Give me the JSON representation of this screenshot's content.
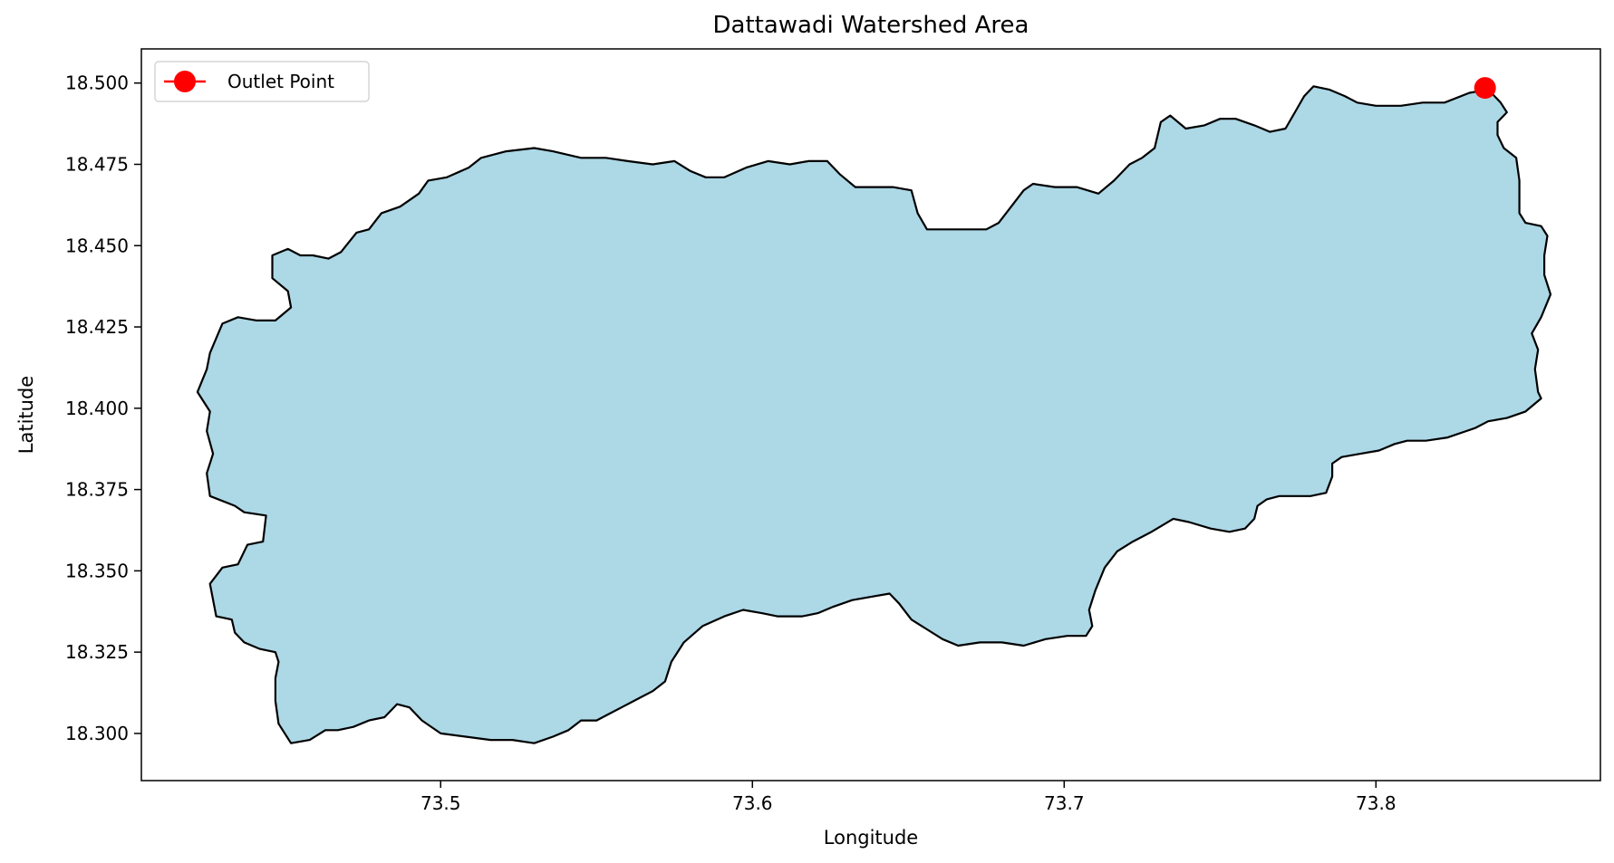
{
  "chart_data": {
    "type": "map",
    "title": "Dattawadi Watershed Area",
    "xlabel": "Longitude",
    "ylabel": "Latitude",
    "xlim": [
      73.404,
      73.872
    ],
    "ylim": [
      18.2855,
      18.5105
    ],
    "x_ticks": [
      73.5,
      73.6,
      73.7,
      73.8
    ],
    "x_tick_labels": [
      "73.5",
      "73.6",
      "73.7",
      "73.8"
    ],
    "y_ticks": [
      18.3,
      18.325,
      18.35,
      18.375,
      18.4,
      18.425,
      18.45,
      18.475,
      18.5
    ],
    "y_tick_labels": [
      "18.300",
      "18.325",
      "18.350",
      "18.375",
      "18.400",
      "18.425",
      "18.450",
      "18.475",
      "18.500"
    ],
    "grid": false,
    "legend": {
      "placement": "top-left",
      "entries": [
        {
          "label": "Outlet Point",
          "color": "#ff0000",
          "marker": "circle"
        }
      ]
    },
    "watershed": {
      "fill": "#add8e6",
      "edge": "#000000",
      "boundary": [
        [
          73.428,
          18.336
        ],
        [
          73.426,
          18.346
        ],
        [
          73.43,
          18.351
        ],
        [
          73.435,
          18.352
        ],
        [
          73.438,
          18.358
        ],
        [
          73.443,
          18.359
        ],
        [
          73.444,
          18.367
        ],
        [
          73.437,
          18.368
        ],
        [
          73.434,
          18.37
        ],
        [
          73.426,
          18.373
        ],
        [
          73.425,
          18.38
        ],
        [
          73.427,
          18.386
        ],
        [
          73.425,
          18.393
        ],
        [
          73.426,
          18.399
        ],
        [
          73.422,
          18.405
        ],
        [
          73.425,
          18.412
        ],
        [
          73.426,
          18.417
        ],
        [
          73.43,
          18.426
        ],
        [
          73.435,
          18.428
        ],
        [
          73.441,
          18.427
        ],
        [
          73.447,
          18.427
        ],
        [
          73.452,
          18.431
        ],
        [
          73.451,
          18.436
        ],
        [
          73.446,
          18.44
        ],
        [
          73.446,
          18.447
        ],
        [
          73.451,
          18.449
        ],
        [
          73.455,
          18.447
        ],
        [
          73.459,
          18.447
        ],
        [
          73.464,
          18.446
        ],
        [
          73.468,
          18.448
        ],
        [
          73.473,
          18.454
        ],
        [
          73.477,
          18.455
        ],
        [
          73.481,
          18.46
        ],
        [
          73.487,
          18.462
        ],
        [
          73.493,
          18.466
        ],
        [
          73.496,
          18.47
        ],
        [
          73.502,
          18.471
        ],
        [
          73.509,
          18.474
        ],
        [
          73.513,
          18.477
        ],
        [
          73.521,
          18.479
        ],
        [
          73.53,
          18.48
        ],
        [
          73.536,
          18.479
        ],
        [
          73.545,
          18.477
        ],
        [
          73.553,
          18.477
        ],
        [
          73.56,
          18.476
        ],
        [
          73.568,
          18.475
        ],
        [
          73.575,
          18.476
        ],
        [
          73.58,
          18.473
        ],
        [
          73.585,
          18.471
        ],
        [
          73.591,
          18.471
        ],
        [
          73.598,
          18.474
        ],
        [
          73.605,
          18.476
        ],
        [
          73.612,
          18.475
        ],
        [
          73.618,
          18.476
        ],
        [
          73.624,
          18.476
        ],
        [
          73.628,
          18.472
        ],
        [
          73.633,
          18.468
        ],
        [
          73.64,
          18.468
        ],
        [
          73.645,
          18.468
        ],
        [
          73.651,
          18.467
        ],
        [
          73.653,
          18.46
        ],
        [
          73.656,
          18.455
        ],
        [
          73.661,
          18.455
        ],
        [
          73.667,
          18.455
        ],
        [
          73.672,
          18.455
        ],
        [
          73.675,
          18.455
        ],
        [
          73.679,
          18.457
        ],
        [
          73.683,
          18.462
        ],
        [
          73.687,
          18.467
        ],
        [
          73.69,
          18.469
        ],
        [
          73.697,
          18.468
        ],
        [
          73.704,
          18.468
        ],
        [
          73.711,
          18.466
        ],
        [
          73.716,
          18.47
        ],
        [
          73.721,
          18.475
        ],
        [
          73.725,
          18.477
        ],
        [
          73.729,
          18.48
        ],
        [
          73.731,
          18.488
        ],
        [
          73.734,
          18.49
        ],
        [
          73.739,
          18.486
        ],
        [
          73.745,
          18.487
        ],
        [
          73.75,
          18.489
        ],
        [
          73.755,
          18.489
        ],
        [
          73.761,
          18.487
        ],
        [
          73.766,
          18.485
        ],
        [
          73.771,
          18.486
        ],
        [
          73.774,
          18.491
        ],
        [
          73.777,
          18.496
        ],
        [
          73.78,
          18.499
        ],
        [
          73.785,
          18.498
        ],
        [
          73.79,
          18.496
        ],
        [
          73.794,
          18.494
        ],
        [
          73.8,
          18.493
        ],
        [
          73.808,
          18.493
        ],
        [
          73.815,
          18.494
        ],
        [
          73.822,
          18.494
        ],
        [
          73.83,
          18.497
        ],
        [
          73.836,
          18.498
        ],
        [
          73.84,
          18.494
        ],
        [
          73.842,
          18.491
        ],
        [
          73.839,
          18.488
        ],
        [
          73.839,
          18.484
        ],
        [
          73.841,
          18.48
        ],
        [
          73.845,
          18.477
        ],
        [
          73.846,
          18.47
        ],
        [
          73.846,
          18.465
        ],
        [
          73.846,
          18.46
        ],
        [
          73.848,
          18.457
        ],
        [
          73.853,
          18.456
        ],
        [
          73.855,
          18.453
        ],
        [
          73.854,
          18.447
        ],
        [
          73.854,
          18.441
        ],
        [
          73.856,
          18.435
        ],
        [
          73.853,
          18.428
        ],
        [
          73.85,
          18.423
        ],
        [
          73.852,
          18.418
        ],
        [
          73.851,
          18.412
        ],
        [
          73.852,
          18.405
        ],
        [
          73.853,
          18.403
        ],
        [
          73.848,
          18.399
        ],
        [
          73.842,
          18.397
        ],
        [
          73.836,
          18.396
        ],
        [
          73.832,
          18.394
        ],
        [
          73.829,
          18.393
        ],
        [
          73.823,
          18.391
        ],
        [
          73.816,
          18.39
        ],
        [
          73.81,
          18.39
        ],
        [
          73.806,
          18.389
        ],
        [
          73.801,
          18.387
        ],
        [
          73.795,
          18.386
        ],
        [
          73.789,
          18.385
        ],
        [
          73.786,
          18.383
        ],
        [
          73.786,
          18.379
        ],
        [
          73.784,
          18.374
        ],
        [
          73.779,
          18.373
        ],
        [
          73.774,
          18.373
        ],
        [
          73.769,
          18.373
        ],
        [
          73.765,
          18.372
        ],
        [
          73.762,
          18.37
        ],
        [
          73.761,
          18.366
        ],
        [
          73.758,
          18.363
        ],
        [
          73.753,
          18.362
        ],
        [
          73.747,
          18.363
        ],
        [
          73.74,
          18.365
        ],
        [
          73.735,
          18.366
        ],
        [
          73.728,
          18.362
        ],
        [
          73.722,
          18.359
        ],
        [
          73.717,
          18.356
        ],
        [
          73.713,
          18.351
        ],
        [
          73.71,
          18.344
        ],
        [
          73.708,
          18.338
        ],
        [
          73.709,
          18.333
        ],
        [
          73.707,
          18.33
        ],
        [
          73.701,
          18.33
        ],
        [
          73.694,
          18.329
        ],
        [
          73.687,
          18.327
        ],
        [
          73.68,
          18.328
        ],
        [
          73.673,
          18.328
        ],
        [
          73.666,
          18.327
        ],
        [
          73.661,
          18.329
        ],
        [
          73.656,
          18.332
        ],
        [
          73.651,
          18.335
        ],
        [
          73.647,
          18.34
        ],
        [
          73.644,
          18.343
        ],
        [
          73.638,
          18.342
        ],
        [
          73.632,
          18.341
        ],
        [
          73.626,
          18.339
        ],
        [
          73.621,
          18.337
        ],
        [
          73.616,
          18.336
        ],
        [
          73.608,
          18.336
        ],
        [
          73.603,
          18.337
        ],
        [
          73.597,
          18.338
        ],
        [
          73.591,
          18.336
        ],
        [
          73.584,
          18.333
        ],
        [
          73.578,
          18.328
        ],
        [
          73.574,
          18.322
        ],
        [
          73.572,
          18.316
        ],
        [
          73.568,
          18.313
        ],
        [
          73.564,
          18.311
        ],
        [
          73.558,
          18.308
        ],
        [
          73.554,
          18.306
        ],
        [
          73.55,
          18.304
        ],
        [
          73.545,
          18.304
        ],
        [
          73.541,
          18.301
        ],
        [
          73.536,
          18.299
        ],
        [
          73.53,
          18.297
        ],
        [
          73.523,
          18.298
        ],
        [
          73.516,
          18.298
        ],
        [
          73.508,
          18.299
        ],
        [
          73.5,
          18.3
        ],
        [
          73.494,
          18.304
        ],
        [
          73.49,
          18.308
        ],
        [
          73.486,
          18.309
        ],
        [
          73.482,
          18.305
        ],
        [
          73.477,
          18.304
        ],
        [
          73.472,
          18.302
        ],
        [
          73.467,
          18.301
        ],
        [
          73.463,
          18.301
        ],
        [
          73.458,
          18.298
        ],
        [
          73.452,
          18.297
        ],
        [
          73.448,
          18.303
        ],
        [
          73.447,
          18.31
        ],
        [
          73.447,
          18.317
        ],
        [
          73.448,
          18.322
        ],
        [
          73.447,
          18.325
        ],
        [
          73.442,
          18.326
        ],
        [
          73.437,
          18.328
        ],
        [
          73.434,
          18.331
        ],
        [
          73.433,
          18.335
        ],
        [
          73.428,
          18.336
        ]
      ]
    },
    "outlet_point": {
      "lon": 73.835,
      "lat": 18.4985,
      "color": "#ff0000"
    }
  }
}
